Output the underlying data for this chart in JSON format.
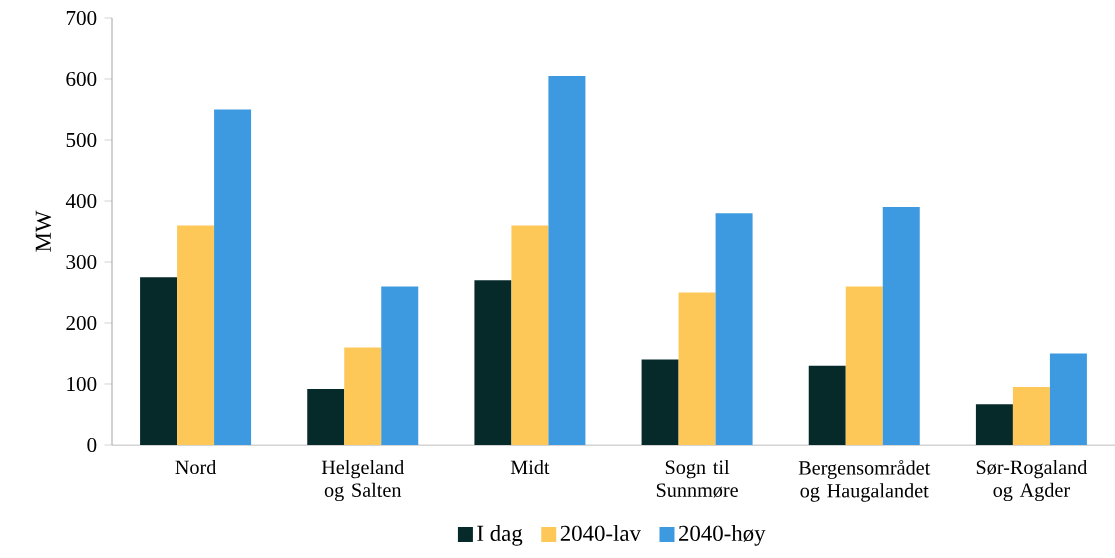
{
  "chart_data": {
    "type": "bar",
    "ylabel": "MW",
    "categories": [
      "Nord",
      "Helgeland og Salten",
      "Midt",
      "Sogn til Sunnmøre",
      "Bergensområdet og Haugalandet",
      "Sør-Rogaland og Agder"
    ],
    "series": [
      {
        "name": "I dag",
        "color": "#062a2a",
        "values": [
          275,
          92,
          270,
          140,
          130,
          67
        ]
      },
      {
        "name": "2040-lav",
        "color": "#fdc858",
        "values": [
          360,
          160,
          360,
          250,
          260,
          95
        ]
      },
      {
        "name": "2040-høy",
        "color": "#3d9ae0",
        "values": [
          550,
          260,
          605,
          380,
          390,
          150
        ]
      }
    ],
    "ylim": [
      0,
      700
    ],
    "yticks": [
      0,
      100,
      200,
      300,
      400,
      500,
      600,
      700
    ],
    "legend": "bottom"
  }
}
